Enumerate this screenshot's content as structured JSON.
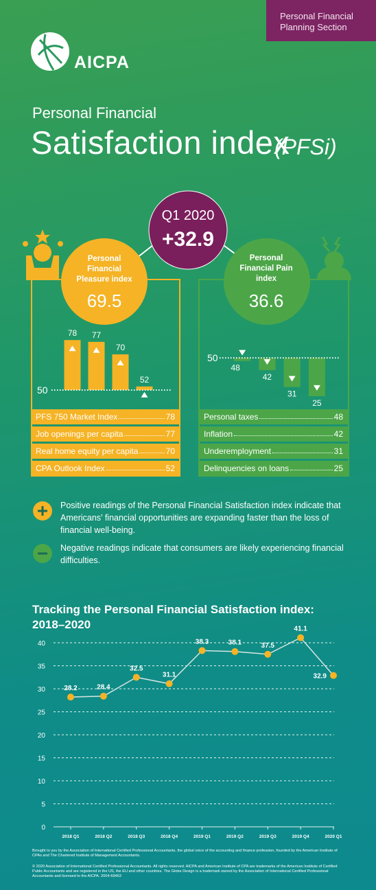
{
  "header": {
    "section": "Personal Financial Planning Section",
    "logo": "AICPA",
    "title_line1": "Personal Financial",
    "title_line2": "Satisfaction index",
    "title_abbr": "(PFSi)"
  },
  "headline": {
    "period": "Q1 2020",
    "value": "+32.9"
  },
  "pleasure": {
    "title": "Personal Financial Pleasure index",
    "value": "69.5"
  },
  "pain": {
    "title": "Personal Financial Pain index",
    "value": "36.6"
  },
  "notes": [
    "Positive readings of the Personal Financial Satisfaction index indicate that Americans’ financial opportunities are expanding faster than the loss of financial well-being.",
    "Negative readings indicate that consumers are likely experiencing financial difficulties."
  ],
  "footer": [
    "Brought to you by the Association of International Certified Professional Accountants, the global voice of the accounting and finance profession, founded by the American Institute of CPAs and The Chartered Institute of Management Accountants.",
    "© 2020 Association of International Certified Professional Accountants. All rights reserved. AICPA and American Institute of CPA are trademarks of the American Institute of Certified Public Accountants and are registered in the US, the EU and other countries. The Globe Design is a trademark owned by the Association of International Certified Professional Accountants and licensed to the AICPA. 2004-69463"
  ],
  "chart_data": [
    {
      "type": "bar",
      "categories": [
        "PFS 750 Market Index",
        "Job openings per capita",
        "Real home equity per capita",
        "CPA Outlook Index"
      ],
      "values": [
        78,
        77,
        70,
        52
      ],
      "color": "#f5b325",
      "ylim": [
        50,
        85
      ],
      "yticks": [
        50
      ]
    },
    {
      "type": "bar",
      "categories": [
        "Personal taxes",
        "Inflation",
        "Underemployment",
        "Delinquencies on loans"
      ],
      "values": [
        48,
        42,
        31,
        25
      ],
      "color": "#4ca648",
      "ylim": [
        20,
        55
      ],
      "yticks": [
        50
      ]
    },
    {
      "type": "line",
      "title": "Tracking the Personal Financial Satisfaction index: 2018–2020",
      "categories": [
        "2018 Q1",
        "2018 Q2",
        "2018 Q3",
        "2018 Q4",
        "2019 Q1",
        "2019 Q2",
        "2019 Q3",
        "2019 Q4",
        "2020 Q1"
      ],
      "values": [
        28.2,
        28.4,
        32.5,
        31.1,
        38.3,
        38.1,
        37.5,
        41.1,
        32.9
      ],
      "color": "#f5b325",
      "ylim": [
        0,
        40
      ],
      "yticks": [
        0,
        5,
        10,
        15,
        20,
        25,
        30,
        35,
        40
      ],
      "grid": true
    }
  ]
}
